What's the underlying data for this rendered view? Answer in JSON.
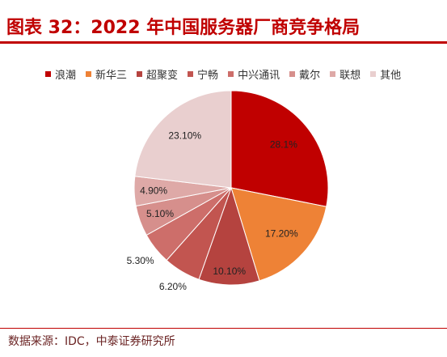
{
  "theme": {
    "accent": "#c00000",
    "source_text": "#6b2424"
  },
  "chart_data": {
    "type": "pie",
    "title": "图表 32：2022 年中国服务器厂商竞争格局",
    "categories": [
      "浪潮",
      "新华三",
      "超聚变",
      "宁畅",
      "中兴通讯",
      "戴尔",
      "联想",
      "其他"
    ],
    "values": [
      28.1,
      17.2,
      10.1,
      6.2,
      5.3,
      5.1,
      4.9,
      23.1
    ],
    "data_labels": [
      "28.1%",
      "17.20%",
      "10.10%",
      "6.20%",
      "5.30%",
      "5.10%",
      "4.90%",
      "23.10%"
    ],
    "colors": [
      "#c00000",
      "#ee8236",
      "#b5433f",
      "#c25550",
      "#cd6e6a",
      "#d68f8c",
      "#dea9a7",
      "#e9cfcf"
    ],
    "legend": "top"
  },
  "source": "数据来源：IDC，中泰证券研究所"
}
